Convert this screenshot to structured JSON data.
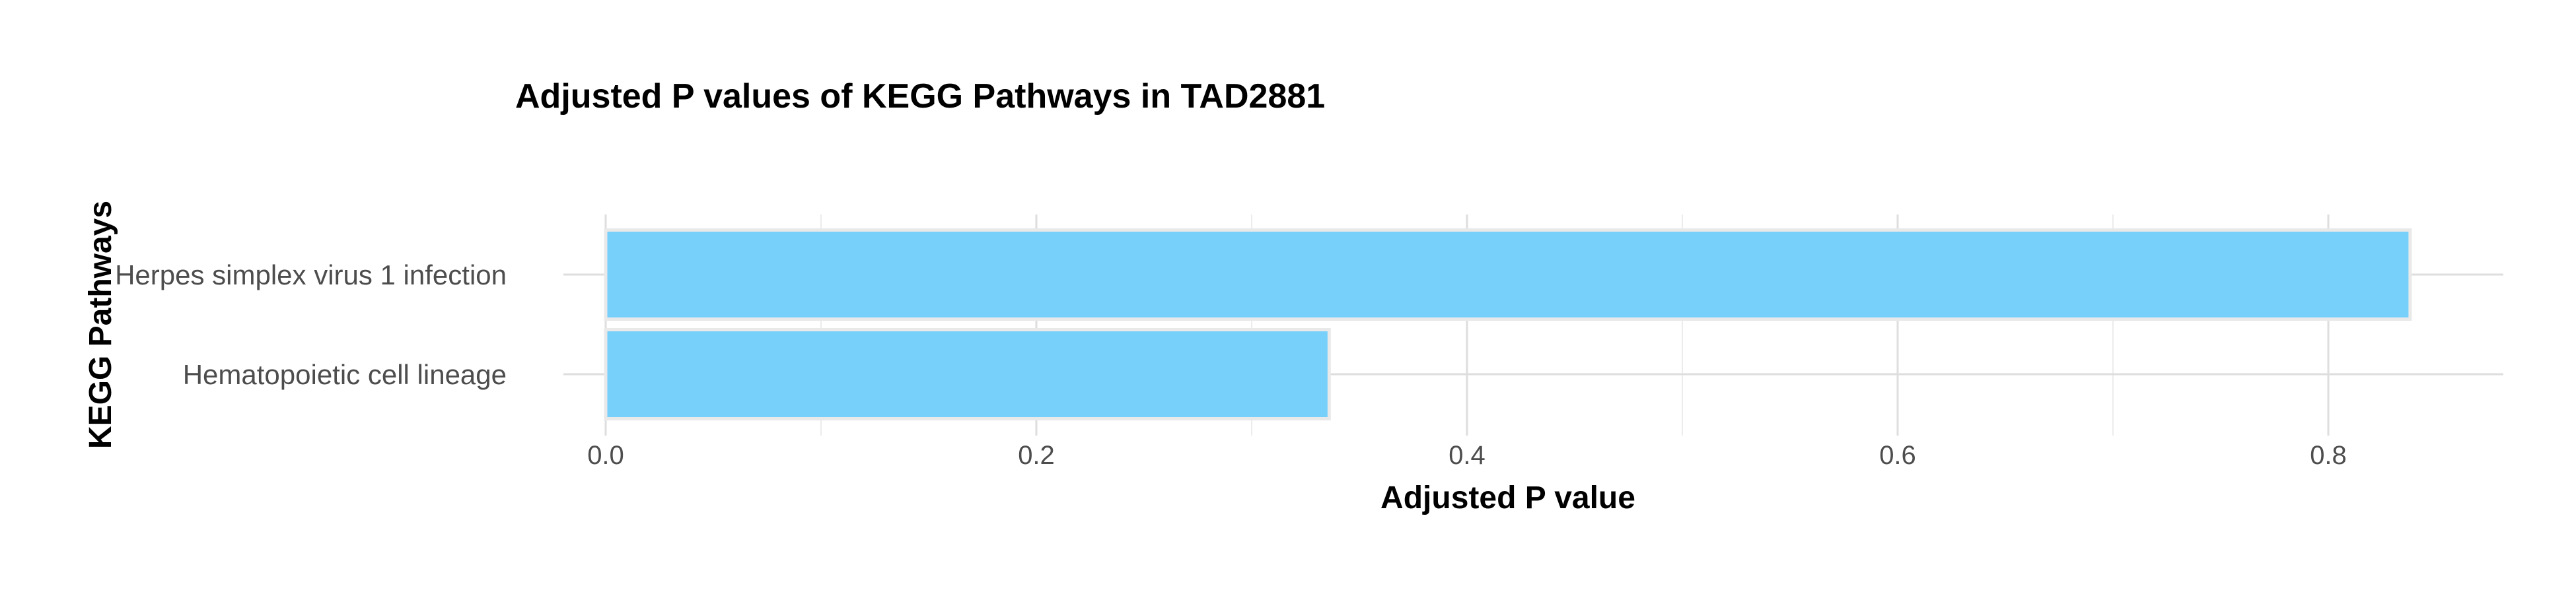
{
  "chart_data": {
    "type": "bar",
    "orientation": "horizontal",
    "title": "Adjusted P values of KEGG Pathways in TAD2881",
    "xlabel": "Adjusted P value",
    "ylabel": "KEGG Pathways",
    "categories": [
      "Herpes simplex virus 1 infection",
      "Hematopoietic cell lineage"
    ],
    "values": [
      0.838,
      0.336
    ],
    "xlim": [
      0,
      0.88
    ],
    "xticks": [
      0.0,
      0.2,
      0.4,
      0.6,
      0.8
    ],
    "xtick_labels": [
      "0.0",
      "0.2",
      "0.4",
      "0.6",
      "0.8"
    ],
    "bar_color": "#74CFFA",
    "grid": true,
    "legend": "none"
  }
}
